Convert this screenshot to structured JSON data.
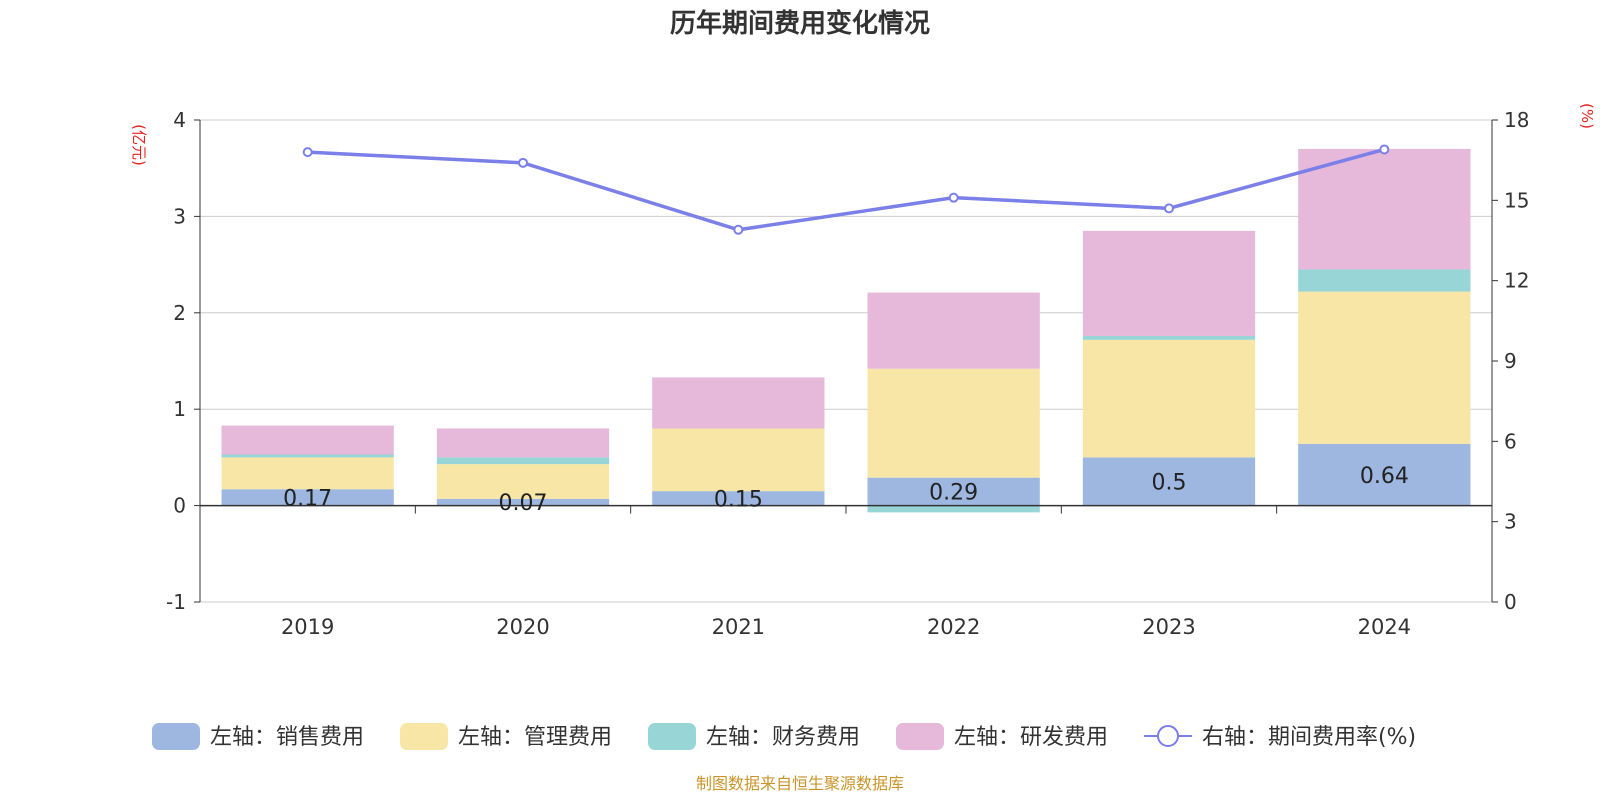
{
  "chart_data": {
    "type": "bar",
    "stacked": true,
    "title": "历年期间费用变化情况",
    "categories": [
      "2019",
      "2020",
      "2021",
      "2022",
      "2023",
      "2024"
    ],
    "left_axis": {
      "unit": "(亿元)",
      "ylim": [
        -1,
        4
      ],
      "ticks": [
        "-1",
        "0",
        "1",
        "2",
        "3",
        "4"
      ]
    },
    "right_axis": {
      "unit": "(%)",
      "ylim": [
        0,
        18
      ],
      "ticks": [
        "0",
        "3",
        "6",
        "9",
        "12",
        "15",
        "18"
      ]
    },
    "series": [
      {
        "name": "左轴：销售费用",
        "axis": "left",
        "color": "#9db7e0",
        "values": [
          0.17,
          0.07,
          0.15,
          0.29,
          0.5,
          0.64
        ],
        "labels": [
          "0.17",
          "0.07",
          "0.15",
          "0.29",
          "0.5",
          "0.64"
        ]
      },
      {
        "name": "左轴：管理费用",
        "axis": "left",
        "color": "#f7e6a6",
        "values": [
          0.33,
          0.36,
          0.65,
          1.13,
          1.22,
          1.58
        ]
      },
      {
        "name": "左轴：财务费用",
        "axis": "left",
        "color": "#98d5d6",
        "values": [
          0.03,
          0.07,
          0.0,
          -0.07,
          0.04,
          0.23
        ]
      },
      {
        "name": "左轴：研发费用",
        "axis": "left",
        "color": "#e6b8d9",
        "values": [
          0.3,
          0.3,
          0.53,
          0.79,
          1.09,
          1.25
        ]
      },
      {
        "name": "右轴：期间费用率(%)",
        "axis": "right",
        "type": "line",
        "color": "#7b7fe8",
        "values": [
          16.8,
          16.4,
          13.9,
          15.1,
          14.7,
          16.9
        ]
      }
    ]
  },
  "source_text": "制图数据来自恒生聚源数据库"
}
